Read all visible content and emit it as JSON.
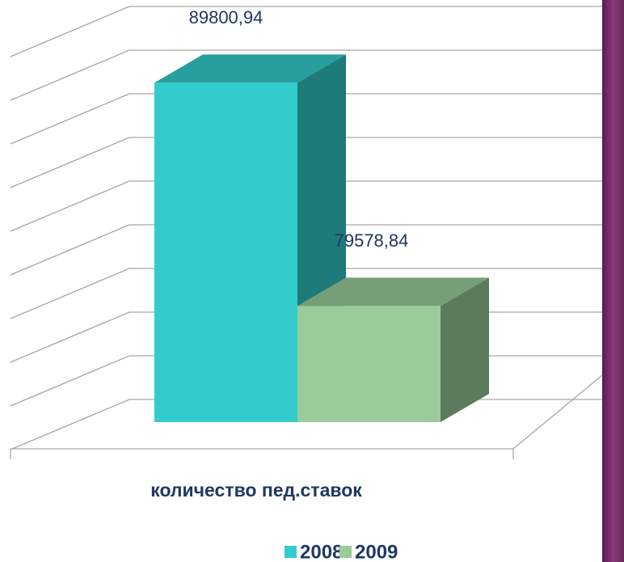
{
  "chart_data": {
    "type": "bar3d",
    "categories": [
      "количество пед.ставок"
    ],
    "series": [
      {
        "name": "2008",
        "color": "#33cccc",
        "values": [
          89800.94
        ],
        "value_labels": [
          "89800,94"
        ]
      },
      {
        "name": "2009",
        "color": "#99cc99",
        "values": [
          79578.84
        ],
        "value_labels": [
          "79578,84"
        ]
      }
    ],
    "ylim": [
      74000,
      92000
    ],
    "yticks": [
      74000,
      76000,
      78000,
      80000,
      82000,
      84000,
      86000,
      88000,
      90000,
      92000
    ],
    "grid": true,
    "legend": "bottom"
  }
}
